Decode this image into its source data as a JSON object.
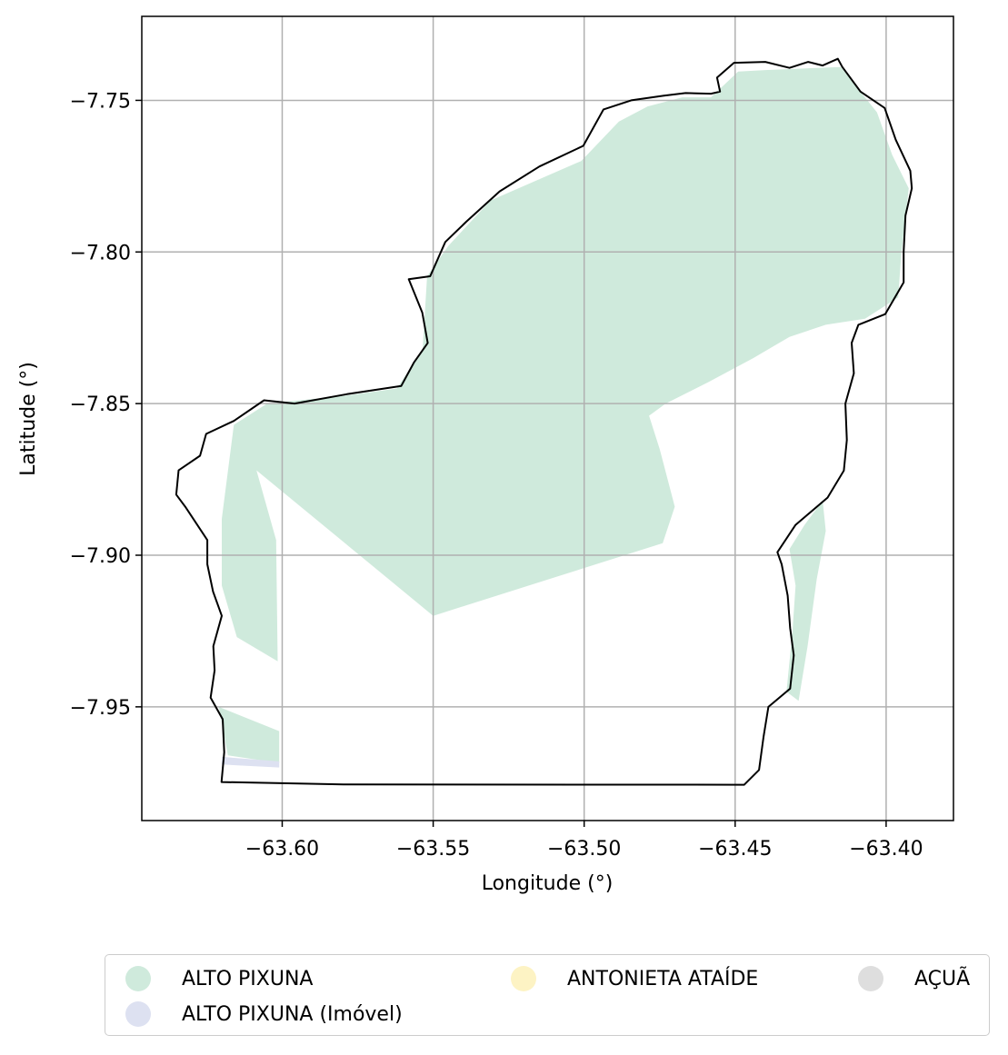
{
  "chart_data": {
    "type": "map",
    "xlabel": "Longitude (°)",
    "ylabel": "Latitude (°)",
    "xlim": [
      -63.6465,
      -63.3777
    ],
    "ylim": [
      -7.9875,
      -7.7223
    ],
    "xticks": [
      -63.6,
      -63.55,
      -63.5,
      -63.45,
      -63.4
    ],
    "xtick_labels": [
      "−63.60",
      "−63.55",
      "−63.50",
      "−63.45",
      "−63.40"
    ],
    "yticks": [
      -7.75,
      -7.8,
      -7.85,
      -7.9,
      -7.95
    ],
    "ytick_labels": [
      "−7.75",
      "−7.80",
      "−7.85",
      "−7.90",
      "−7.95"
    ],
    "grid": true,
    "legend_placement": "bottom-center",
    "colors": {
      "boundary": "#000000",
      "grid": "#b0b0b0",
      "alto_pixuna": "#cfeadc",
      "alto_pixuna_imovel": "#dde1f1",
      "antonieta_ataide": "#fdf3c4",
      "acua": "#dedede"
    },
    "series": [
      {
        "name": "ALTO PIXUNA",
        "color": "#cfeadc"
      },
      {
        "name": "ALTO PIXUNA (Imóvel)",
        "color": "#dde1f1"
      },
      {
        "name": "ANTONIETA ATAÍDE",
        "color": "#fdf3c4"
      },
      {
        "name": "AÇUÃ",
        "color": "#dedede"
      }
    ],
    "boundary": [
      [
        -63.6201,
        -7.9748
      ],
      [
        -63.5797,
        -7.9756
      ],
      [
        -63.447,
        -7.9757
      ],
      [
        -63.4421,
        -7.9708
      ],
      [
        -63.4406,
        -7.96
      ],
      [
        -63.439,
        -7.95
      ],
      [
        -63.4318,
        -7.944
      ],
      [
        -63.4306,
        -7.933
      ],
      [
        -63.4318,
        -7.924
      ],
      [
        -63.4326,
        -7.9133
      ],
      [
        -63.4346,
        -7.903
      ],
      [
        -63.436,
        -7.899
      ],
      [
        -63.43,
        -7.89
      ],
      [
        -63.4194,
        -7.881
      ],
      [
        -63.414,
        -7.8721
      ],
      [
        -63.413,
        -7.862
      ],
      [
        -63.4135,
        -7.85
      ],
      [
        -63.4107,
        -7.84
      ],
      [
        -63.4114,
        -7.83
      ],
      [
        -63.4092,
        -7.824
      ],
      [
        -63.4003,
        -7.8205
      ],
      [
        -63.3942,
        -7.81
      ],
      [
        -63.3942,
        -7.7999
      ],
      [
        -63.3936,
        -7.788
      ],
      [
        -63.3915,
        -7.779
      ],
      [
        -63.392,
        -7.7732
      ],
      [
        -63.3968,
        -7.763
      ],
      [
        -63.4005,
        -7.7525
      ],
      [
        -63.4085,
        -7.7471
      ],
      [
        -63.4145,
        -7.739
      ],
      [
        -63.416,
        -7.7363
      ],
      [
        -63.421,
        -7.7385
      ],
      [
        -63.4258,
        -7.7373
      ],
      [
        -63.432,
        -7.7393
      ],
      [
        -63.44,
        -7.7373
      ],
      [
        -63.4504,
        -7.7376
      ],
      [
        -63.456,
        -7.7425
      ],
      [
        -63.455,
        -7.7471
      ],
      [
        -63.458,
        -7.7478
      ],
      [
        -63.4664,
        -7.7476
      ],
      [
        -63.4738,
        -7.7485
      ],
      [
        -63.4844,
        -7.75
      ],
      [
        -63.4936,
        -7.753
      ],
      [
        -63.5003,
        -7.765
      ],
      [
        -63.5148,
        -7.7718
      ],
      [
        -63.528,
        -7.78
      ],
      [
        -63.539,
        -7.79
      ],
      [
        -63.546,
        -7.7967
      ],
      [
        -63.551,
        -7.808
      ],
      [
        -63.5581,
        -7.809
      ],
      [
        -63.5536,
        -7.82
      ],
      [
        -63.5518,
        -7.83
      ],
      [
        -63.5564,
        -7.8365
      ],
      [
        -63.5606,
        -7.8442
      ],
      [
        -63.5786,
        -7.8469
      ],
      [
        -63.5959,
        -7.85
      ],
      [
        -63.606,
        -7.8489
      ],
      [
        -63.616,
        -7.8557
      ],
      [
        -63.6252,
        -7.86
      ],
      [
        -63.6272,
        -7.8672
      ],
      [
        -63.6343,
        -7.872
      ],
      [
        -63.6351,
        -7.88
      ],
      [
        -63.6321,
        -7.884
      ],
      [
        -63.6248,
        -7.895
      ],
      [
        -63.6248,
        -7.903
      ],
      [
        -63.6229,
        -7.912
      ],
      [
        -63.62,
        -7.92
      ],
      [
        -63.6228,
        -7.93
      ],
      [
        -63.6224,
        -7.938
      ],
      [
        -63.6237,
        -7.947
      ],
      [
        -63.6197,
        -7.9541
      ],
      [
        -63.6192,
        -7.965
      ],
      [
        -63.6201,
        -7.9748
      ]
    ],
    "alto_pixuna_area": [
      [
        -63.62,
        -7.888
      ],
      [
        -63.616,
        -7.857
      ],
      [
        -63.605,
        -7.85
      ],
      [
        -63.58,
        -7.8475
      ],
      [
        -63.562,
        -7.845
      ],
      [
        -63.5535,
        -7.832
      ],
      [
        -63.552,
        -7.808
      ],
      [
        -63.545,
        -7.798
      ],
      [
        -63.531,
        -7.783
      ],
      [
        -63.501,
        -7.77
      ],
      [
        -63.4885,
        -7.757
      ],
      [
        -63.479,
        -7.752
      ],
      [
        -63.4675,
        -7.749
      ],
      [
        -63.458,
        -7.749
      ],
      [
        -63.449,
        -7.7405
      ],
      [
        -63.44,
        -7.74
      ],
      [
        -63.415,
        -7.739
      ],
      [
        -63.403,
        -7.754
      ],
      [
        -63.398,
        -7.768
      ],
      [
        -63.3925,
        -7.779
      ],
      [
        -63.395,
        -7.801
      ],
      [
        -63.396,
        -7.815
      ],
      [
        -63.407,
        -7.822
      ],
      [
        -63.42,
        -7.824
      ],
      [
        -63.432,
        -7.828
      ],
      [
        -63.444,
        -7.835
      ],
      [
        -63.459,
        -7.843
      ],
      [
        -63.473,
        -7.85
      ],
      [
        -63.4785,
        -7.854
      ],
      [
        -63.475,
        -7.865
      ],
      [
        -63.47,
        -7.884
      ],
      [
        -63.474,
        -7.896
      ],
      [
        -63.55,
        -7.92
      ],
      [
        -63.6085,
        -7.872
      ],
      [
        -63.602,
        -7.895
      ],
      [
        -63.6015,
        -7.935
      ],
      [
        -63.615,
        -7.927
      ],
      [
        -63.62,
        -7.91
      ]
    ],
    "alto_pixuna_lower": [
      [
        -63.621,
        -7.95
      ],
      [
        -63.601,
        -7.958
      ],
      [
        -63.601,
        -7.9685
      ],
      [
        -63.618,
        -7.966
      ]
    ],
    "alto_pixuna_east_strip": [
      [
        -63.432,
        -7.898
      ],
      [
        -63.427,
        -7.89
      ],
      [
        -63.421,
        -7.882
      ],
      [
        -63.42,
        -7.892
      ],
      [
        -63.423,
        -7.908
      ],
      [
        -63.426,
        -7.93
      ],
      [
        -63.429,
        -7.948
      ],
      [
        -63.433,
        -7.945
      ],
      [
        -63.431,
        -7.925
      ],
      [
        -63.43,
        -7.91
      ]
    ],
    "alto_pixuna_imovel_area": [
      [
        -63.62,
        -7.9665
      ],
      [
        -63.601,
        -7.968
      ],
      [
        -63.601,
        -7.97
      ],
      [
        -63.62,
        -7.969
      ]
    ]
  }
}
